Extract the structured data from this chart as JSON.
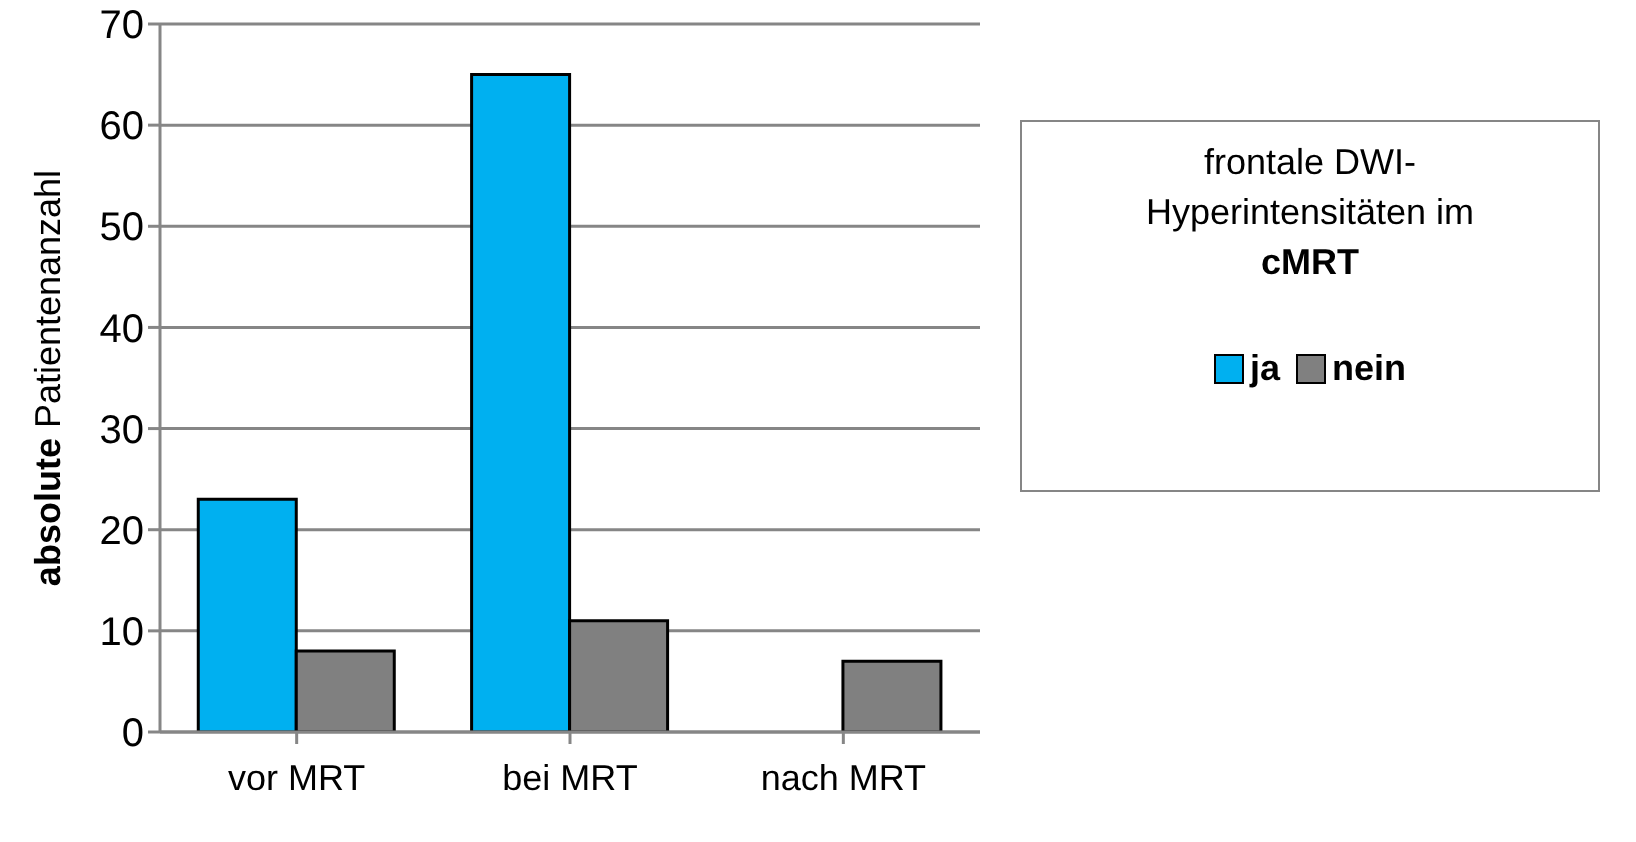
{
  "chart_data": {
    "type": "bar",
    "categories": [
      "vor MRT",
      "bei MRT",
      "nach MRT"
    ],
    "series": [
      {
        "name": "ja",
        "color": "#00b0f0",
        "values": [
          23,
          65,
          0
        ]
      },
      {
        "name": "nein",
        "color": "#808080",
        "values": [
          8,
          11,
          7
        ]
      }
    ],
    "ylabel": "absolute Patientenanzahl",
    "legend_title": "frontale DWI-Hyperintensitäten im cMRT",
    "ylim": [
      0,
      70
    ],
    "yticks": [
      0,
      10,
      20,
      30,
      40,
      50,
      60,
      70
    ],
    "grid": "y",
    "legend": "right"
  }
}
